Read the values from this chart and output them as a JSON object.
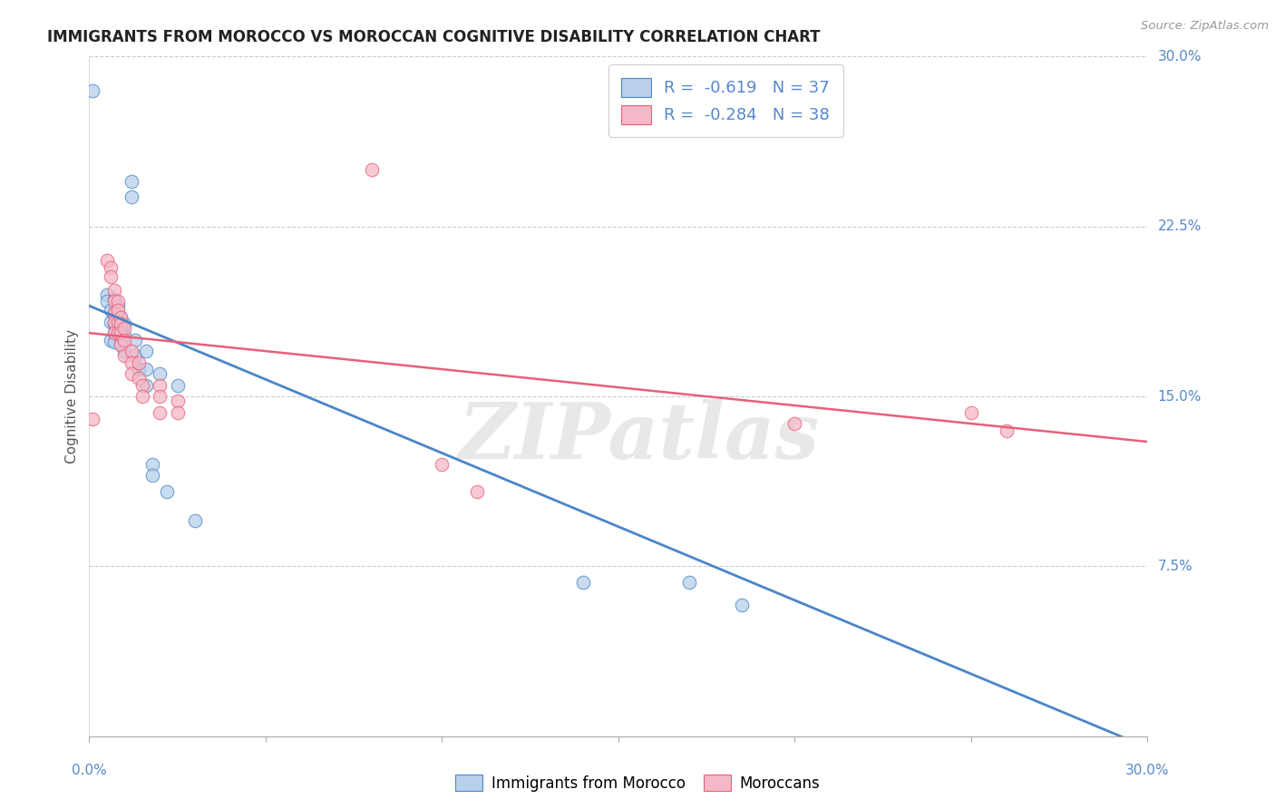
{
  "title": "IMMIGRANTS FROM MOROCCO VS MOROCCAN COGNITIVE DISABILITY CORRELATION CHART",
  "source": "Source: ZipAtlas.com",
  "ylabel": "Cognitive Disability",
  "watermark": "ZIPatlas",
  "legend1_r": "R = ",
  "legend1_rval": "-0.619",
  "legend1_n": "   N = 37",
  "legend2_r": "R = ",
  "legend2_rval": "-0.284",
  "legend2_n": "   N = 38",
  "line1_color": "#4a86c8",
  "line2_color": "#e8607a",
  "marker1_facecolor": "#b8d0ea",
  "marker1_edgecolor": "#4a86c8",
  "marker2_facecolor": "#f5b8c8",
  "marker2_edgecolor": "#e8607a",
  "right_ytick_color": "#5588cc",
  "xlim": [
    0.0,
    0.3
  ],
  "ylim": [
    0.0,
    0.3
  ],
  "ytick_positions": [
    0.075,
    0.15,
    0.225,
    0.3
  ],
  "ytick_labels": [
    "7.5%",
    "15.0%",
    "22.5%",
    "30.0%"
  ],
  "blue_points": [
    [
      0.001,
      0.285
    ],
    [
      0.012,
      0.245
    ],
    [
      0.012,
      0.238
    ],
    [
      0.005,
      0.195
    ],
    [
      0.005,
      0.192
    ],
    [
      0.006,
      0.188
    ],
    [
      0.006,
      0.183
    ],
    [
      0.006,
      0.175
    ],
    [
      0.007,
      0.193
    ],
    [
      0.007,
      0.186
    ],
    [
      0.007,
      0.182
    ],
    [
      0.007,
      0.178
    ],
    [
      0.007,
      0.174
    ],
    [
      0.008,
      0.19
    ],
    [
      0.008,
      0.185
    ],
    [
      0.008,
      0.178
    ],
    [
      0.009,
      0.185
    ],
    [
      0.009,
      0.18
    ],
    [
      0.009,
      0.173
    ],
    [
      0.01,
      0.182
    ],
    [
      0.01,
      0.177
    ],
    [
      0.01,
      0.17
    ],
    [
      0.013,
      0.175
    ],
    [
      0.013,
      0.168
    ],
    [
      0.014,
      0.162
    ],
    [
      0.016,
      0.17
    ],
    [
      0.016,
      0.162
    ],
    [
      0.016,
      0.155
    ],
    [
      0.02,
      0.16
    ],
    [
      0.025,
      0.155
    ],
    [
      0.018,
      0.12
    ],
    [
      0.018,
      0.115
    ],
    [
      0.022,
      0.108
    ],
    [
      0.03,
      0.095
    ],
    [
      0.14,
      0.068
    ],
    [
      0.17,
      0.068
    ],
    [
      0.185,
      0.058
    ]
  ],
  "pink_points": [
    [
      0.001,
      0.14
    ],
    [
      0.005,
      0.21
    ],
    [
      0.006,
      0.207
    ],
    [
      0.006,
      0.203
    ],
    [
      0.007,
      0.197
    ],
    [
      0.007,
      0.192
    ],
    [
      0.007,
      0.187
    ],
    [
      0.007,
      0.183
    ],
    [
      0.007,
      0.178
    ],
    [
      0.008,
      0.192
    ],
    [
      0.008,
      0.188
    ],
    [
      0.008,
      0.183
    ],
    [
      0.008,
      0.178
    ],
    [
      0.009,
      0.185
    ],
    [
      0.009,
      0.182
    ],
    [
      0.009,
      0.178
    ],
    [
      0.009,
      0.173
    ],
    [
      0.01,
      0.18
    ],
    [
      0.01,
      0.175
    ],
    [
      0.01,
      0.168
    ],
    [
      0.012,
      0.17
    ],
    [
      0.012,
      0.165
    ],
    [
      0.012,
      0.16
    ],
    [
      0.014,
      0.165
    ],
    [
      0.014,
      0.158
    ],
    [
      0.015,
      0.155
    ],
    [
      0.015,
      0.15
    ],
    [
      0.02,
      0.155
    ],
    [
      0.02,
      0.15
    ],
    [
      0.02,
      0.143
    ],
    [
      0.025,
      0.148
    ],
    [
      0.025,
      0.143
    ],
    [
      0.08,
      0.25
    ],
    [
      0.1,
      0.12
    ],
    [
      0.11,
      0.108
    ],
    [
      0.2,
      0.138
    ],
    [
      0.25,
      0.143
    ],
    [
      0.26,
      0.135
    ]
  ],
  "blue_line_x": [
    0.0,
    0.3
  ],
  "blue_line_y": [
    0.19,
    -0.005
  ],
  "pink_line_x": [
    0.0,
    0.3
  ],
  "pink_line_y": [
    0.178,
    0.13
  ]
}
